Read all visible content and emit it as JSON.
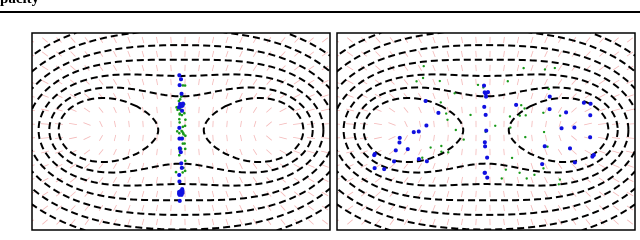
{
  "header": {
    "text": "pacity"
  }
}
